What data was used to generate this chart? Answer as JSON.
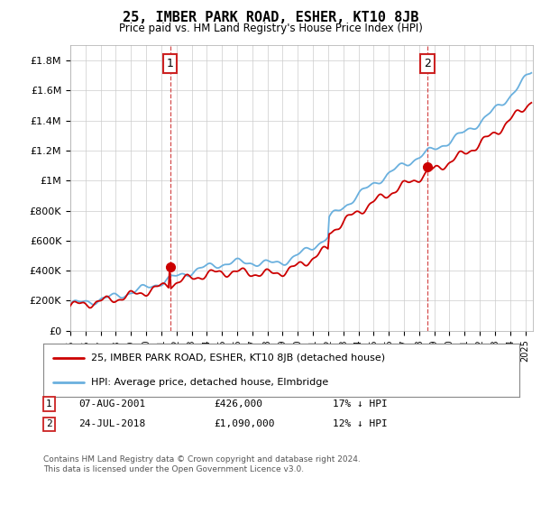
{
  "title": "25, IMBER PARK ROAD, ESHER, KT10 8JB",
  "subtitle": "Price paid vs. HM Land Registry's House Price Index (HPI)",
  "ylabel_ticks": [
    "£0",
    "£200K",
    "£400K",
    "£600K",
    "£800K",
    "£1M",
    "£1.2M",
    "£1.4M",
    "£1.6M",
    "£1.8M"
  ],
  "ytick_values": [
    0,
    200000,
    400000,
    600000,
    800000,
    1000000,
    1200000,
    1400000,
    1600000,
    1800000
  ],
  "ylim": [
    0,
    1900000
  ],
  "xlim_start": 1995.0,
  "xlim_end": 2025.5,
  "sale1_x": 2001.58,
  "sale1_y": 426000,
  "sale2_x": 2018.55,
  "sale2_y": 1090000,
  "hpi_color": "#6ab0de",
  "price_color": "#cc0000",
  "marker_color": "#cc0000",
  "vline_color": "#cc2222",
  "legend_label1": "25, IMBER PARK ROAD, ESHER, KT10 8JB (detached house)",
  "legend_label2": "HPI: Average price, detached house, Elmbridge",
  "annotation1_label": "1",
  "annotation2_label": "2",
  "footer": "Contains HM Land Registry data © Crown copyright and database right 2024.\nThis data is licensed under the Open Government Licence v3.0.",
  "background_color": "#ffffff",
  "grid_color": "#cccccc"
}
